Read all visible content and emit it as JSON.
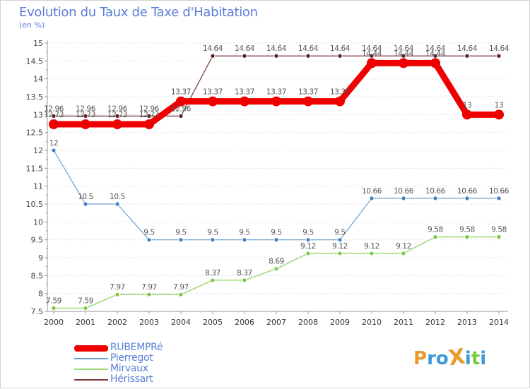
{
  "title": "Evolution du Taux de Taxe d'Habitation",
  "unit_label": "(en %)",
  "logo_text": "ProXiti",
  "colors": {
    "title": "#5a7ed8",
    "axis": "#999999",
    "grid": "#cccccc",
    "rubempre": "#ee0000",
    "pierregot": "#6d9fcf",
    "mirvaux": "#9fd87a",
    "herissart": "#7a3434",
    "pierregot_marker": "#3d80c8",
    "mirvaux_marker": "#7cc73f",
    "herissart_marker": "#5a1e1e",
    "logo": [
      "#e89a2c",
      "#3c9ad8",
      "#3c9ad8",
      "#e89a2c",
      "#3c9ad8",
      "#7cc73f",
      "#3c9ad8"
    ]
  },
  "chart_data": {
    "type": "line",
    "title": "Evolution du Taux de Taxe d'Habitation",
    "ylabel": "(en %)",
    "xlabel": "",
    "x": [
      "2000",
      "2001",
      "2002",
      "2003",
      "2004",
      "2005",
      "2006",
      "2007",
      "2008",
      "2009",
      "2010",
      "2011",
      "2012",
      "2013",
      "2014"
    ],
    "ylim": [
      7.5,
      15
    ],
    "yticks": [
      "7.5",
      "8",
      "8.5",
      "9",
      "9.5",
      "10",
      "10.5",
      "11",
      "11.5",
      "12",
      "12.5",
      "13",
      "13.5",
      "14",
      "14.5",
      "15"
    ],
    "grid": true,
    "legend_position": "bottom-left",
    "series": [
      {
        "name": "RUBEMPRé",
        "key": "rubempre",
        "values": [
          12.73,
          12.73,
          12.73,
          12.73,
          13.37,
          13.37,
          13.37,
          13.37,
          13.37,
          13.37,
          14.44,
          14.44,
          14.44,
          13,
          13
        ],
        "labels": [
          "12.73",
          "12.73",
          "12.73",
          "12.73",
          "13.37",
          "13.37",
          "13.37",
          "13.37",
          "13.37",
          "13.37",
          "14.44",
          "14.44",
          "14.44",
          "13",
          "13"
        ]
      },
      {
        "name": "Pierregot",
        "key": "pierregot",
        "values": [
          12,
          10.5,
          10.5,
          9.5,
          9.5,
          9.5,
          9.5,
          9.5,
          9.5,
          9.5,
          10.66,
          10.66,
          10.66,
          10.66,
          10.66
        ],
        "labels": [
          "12",
          "10.5",
          "10.5",
          "9.5",
          "9.5",
          "9.5",
          "9.5",
          "9.5",
          "9.5",
          "9.5",
          "10.66",
          "10.66",
          "10.66",
          "10.66",
          "10.66"
        ]
      },
      {
        "name": "Mirvaux",
        "key": "mirvaux",
        "values": [
          7.59,
          7.59,
          7.97,
          7.97,
          7.97,
          8.37,
          8.37,
          8.69,
          9.12,
          9.12,
          9.12,
          9.12,
          9.58,
          9.58,
          9.58
        ],
        "labels": [
          "7.59",
          "7.59",
          "7.97",
          "7.97",
          "7.97",
          "8.37",
          "8.37",
          "8.69",
          "9.12",
          "9.12",
          "9.12",
          "9.12",
          "9.58",
          "9.58",
          "9.58"
        ]
      },
      {
        "name": "Hérissart",
        "key": "herissart",
        "values": [
          12.96,
          12.96,
          12.96,
          12.96,
          12.96,
          14.64,
          14.64,
          14.64,
          14.64,
          14.64,
          14.64,
          14.64,
          14.64,
          14.64,
          14.64
        ],
        "labels": [
          "12.96",
          "12.96",
          "12.96",
          "12.96",
          "12.96",
          "14.64",
          "14.64",
          "14.64",
          "14.64",
          "14.64",
          "14.64",
          "14.64",
          "14.64",
          "14.64",
          "14.64"
        ]
      }
    ]
  }
}
